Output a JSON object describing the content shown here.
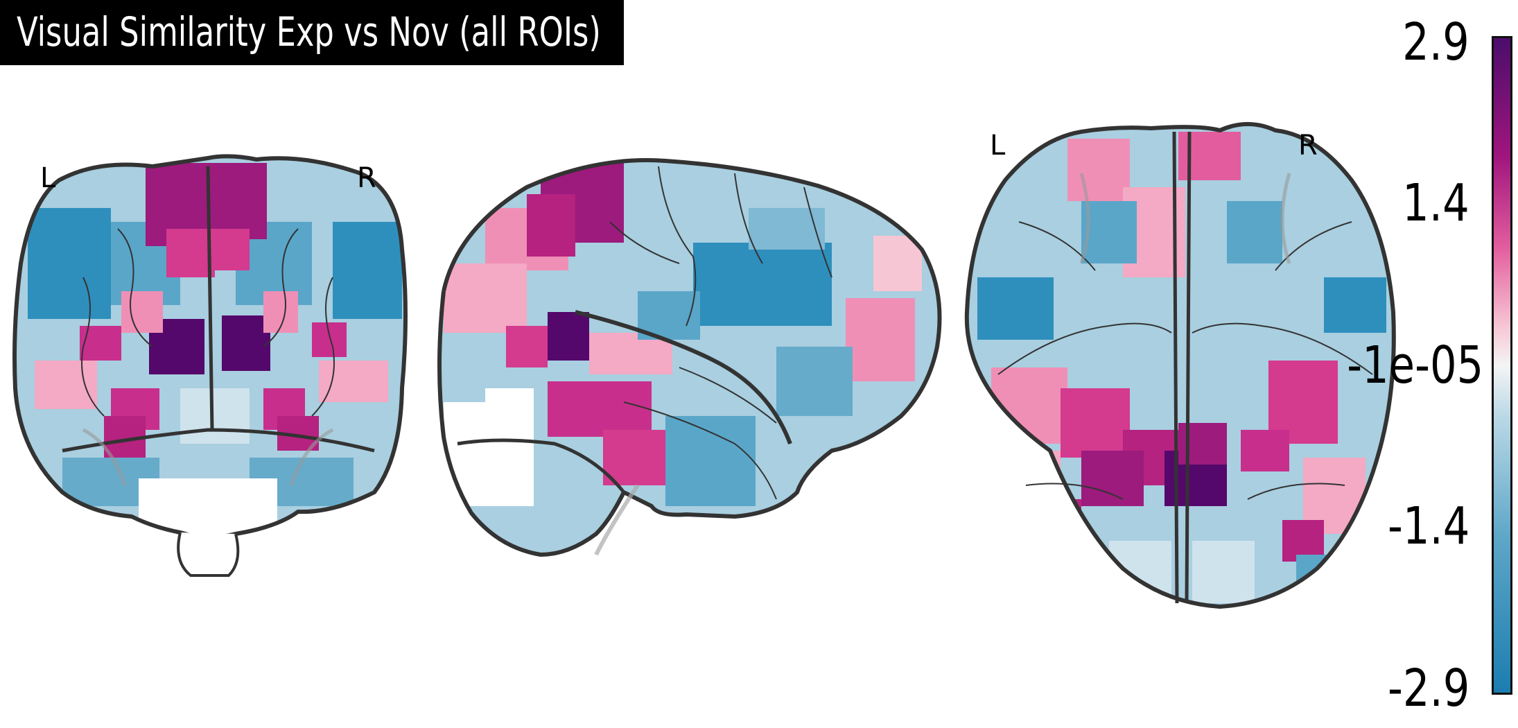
{
  "title": "Visual Similarity Exp vs Nov (all ROIs)",
  "views": {
    "coronal": {
      "left_label": "L",
      "right_label": "R"
    },
    "axial": {
      "left_label": "L",
      "right_label": "R"
    }
  },
  "colorbar": {
    "ticks": [
      "2.9",
      "1.4",
      "-1e-05",
      "-1.4",
      "-2.9"
    ],
    "max": 2.9,
    "min": -2.9,
    "colors": {
      "max": "#4b0d6b",
      "high": "#a0157e",
      "mid_high": "#e35d9e",
      "light_pink": "#f7c6d4",
      "center": "#f4f4f4",
      "light_blue": "#b9d8e6",
      "mid_low": "#5fa7c8",
      "min": "#1b7db0"
    }
  }
}
